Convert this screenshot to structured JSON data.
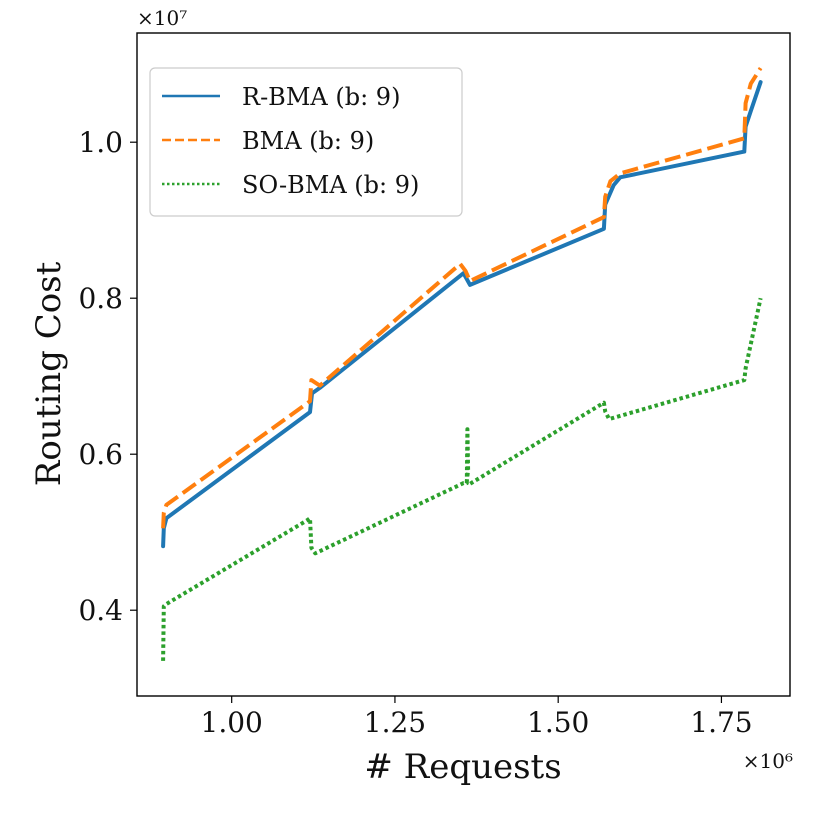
{
  "chart_data": {
    "type": "line",
    "title": "",
    "xlabel": "# Requests",
    "ylabel": "Routing Cost",
    "x_offset_label": "×10⁶",
    "y_offset_label": "×10⁷",
    "xlim": [
      0.855,
      1.855
    ],
    "ylim": [
      0.29,
      1.14
    ],
    "xticks": [
      1.0,
      1.25,
      1.5,
      1.75
    ],
    "xtick_labels": [
      "1.00",
      "1.25",
      "1.50",
      "1.75"
    ],
    "yticks": [
      0.4,
      0.6,
      0.8,
      1.0
    ],
    "ytick_labels": [
      "0.4",
      "0.6",
      "0.8",
      "1.0"
    ],
    "legend_position": "top-left",
    "grid": false,
    "series": [
      {
        "name": "R-BMA (b: 9)",
        "color": "#1f77b4",
        "style": "solid",
        "x": [
          0.895,
          0.896,
          0.9,
          1.12,
          1.123,
          1.135,
          1.355,
          1.365,
          1.57,
          1.572,
          1.585,
          1.595,
          1.785,
          1.787,
          1.795,
          1.81
        ],
        "y": [
          0.482,
          0.505,
          0.518,
          0.654,
          0.678,
          0.685,
          0.832,
          0.817,
          0.889,
          0.92,
          0.945,
          0.955,
          0.988,
          1.02,
          1.04,
          1.077
        ]
      },
      {
        "name": "BMA (b: 9)",
        "color": "#ff7f0e",
        "style": "dashed",
        "x": [
          0.895,
          0.896,
          0.9,
          1.12,
          1.122,
          1.135,
          1.35,
          1.358,
          1.365,
          1.57,
          1.572,
          1.58,
          1.595,
          1.785,
          1.787,
          1.795,
          1.81
        ],
        "y": [
          0.505,
          0.525,
          0.535,
          0.668,
          0.695,
          0.688,
          0.844,
          0.835,
          0.822,
          0.904,
          0.93,
          0.95,
          0.96,
          1.005,
          1.05,
          1.075,
          1.095
        ]
      },
      {
        "name": "SO-BMA (b: 9)",
        "color": "#2ca02c",
        "style": "dotted",
        "x": [
          0.895,
          0.896,
          0.9,
          1.115,
          1.12,
          1.122,
          1.128,
          1.355,
          1.36,
          1.361,
          1.362,
          1.36,
          1.365,
          1.57,
          1.572,
          1.578,
          1.785,
          1.787,
          1.81
        ],
        "y": [
          0.335,
          0.405,
          0.408,
          0.515,
          0.518,
          0.48,
          0.473,
          0.563,
          0.563,
          0.632,
          0.58,
          0.565,
          0.562,
          0.666,
          0.655,
          0.645,
          0.695,
          0.71,
          0.8
        ]
      }
    ]
  }
}
